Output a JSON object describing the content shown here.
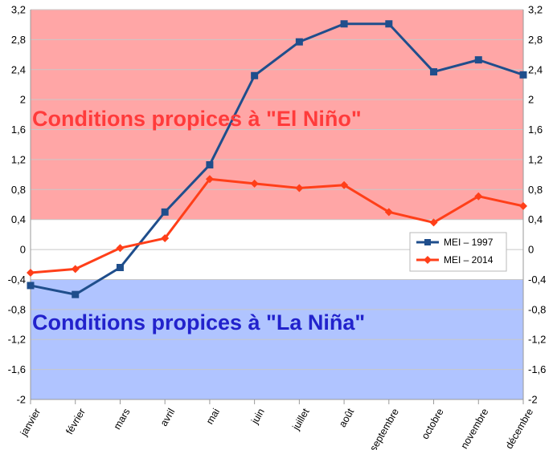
{
  "chart_data": {
    "type": "line",
    "categories": [
      "janvier",
      "février",
      "mars",
      "avril",
      "mai",
      "juin",
      "juillet",
      "août",
      "septembre",
      "octobre",
      "novembre",
      "décembre"
    ],
    "series": [
      {
        "name": "MEI – 1997",
        "color": "#1f4e8c",
        "marker": "square",
        "values": [
          -0.48,
          -0.6,
          -0.24,
          0.5,
          1.13,
          2.32,
          2.77,
          3.01,
          3.01,
          2.37,
          2.53,
          2.33
        ]
      },
      {
        "name": "MEI – 2014",
        "color": "#ff3f19",
        "marker": "diamond",
        "values": [
          -0.31,
          -0.26,
          0.02,
          0.15,
          0.94,
          0.88,
          0.82,
          0.86,
          0.5,
          0.36,
          0.71,
          0.58
        ]
      }
    ],
    "ylim": [
      -2,
      3.2
    ],
    "yticks": [
      "3,2",
      "2,8",
      "2,4",
      "2",
      "1,6",
      "1,2",
      "0,8",
      "0,4",
      "0",
      "-0,4",
      "-0,8",
      "-1,2",
      "-1,6",
      "-2"
    ],
    "ytick_values": [
      3.2,
      2.8,
      2.4,
      2,
      1.6,
      1.2,
      0.8,
      0.4,
      0,
      -0.4,
      -0.8,
      -1.2,
      -1.6,
      -2
    ],
    "zones": [
      {
        "label": "Conditions propices à \"El Niño\"",
        "from": 0.4,
        "to": 3.2,
        "fill": "#ffa6a6",
        "text_color": "#ff3b3b"
      },
      {
        "label": "Conditions propices à \"La Niña\"",
        "from": -2,
        "to": -0.4,
        "fill": "#b0c4ff",
        "text_color": "#2222cc"
      }
    ],
    "legend_position": "right-center",
    "grid": true
  }
}
